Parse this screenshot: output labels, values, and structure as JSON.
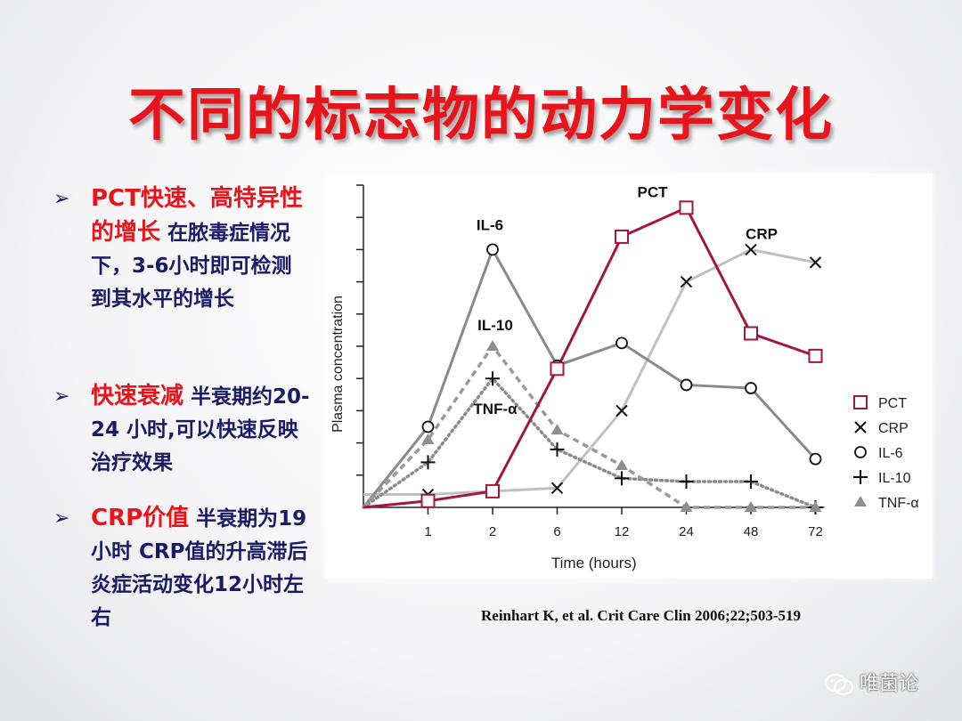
{
  "slide": {
    "title": "不同的标志物的动力学变化",
    "bullets": [
      {
        "highlight": "PCT快速、高特异性的增长",
        "text": " 在脓毒症情况下，3-6小时即可检测到其水平的增长"
      },
      {
        "highlight": "快速衰减",
        "text": " 半衰期约20-24 小时,可以快速反映治疗效果"
      },
      {
        "highlight": "CRP价值",
        "text": " 半衰期为19小时  CRP值的升高滞后炎症活动变化12小时左右"
      }
    ],
    "bullet_marker": "➢",
    "citation": "Reinhart K, et al. Crit Care Clin 2006;22;503-519",
    "watermark": "唯菌论",
    "watermark_icon": "wechat-icon",
    "title_color": "#e8141b",
    "text_color": "#1c1a66"
  },
  "chart_data": {
    "type": "line",
    "xlabel": "Time (hours)",
    "ylabel": "Plasma concentration",
    "x": [
      "0",
      "1",
      "2",
      "6",
      "12",
      "24",
      "48",
      "72"
    ],
    "x_ticklabels": [
      "1",
      "2",
      "6",
      "12",
      "24",
      "48",
      "72"
    ],
    "y_ticks_count": 10,
    "y_ticklabels": false,
    "ylim": [
      0,
      10
    ],
    "grid": false,
    "legend_position": "right",
    "series": [
      {
        "name": "PCT",
        "marker": "square",
        "line": "solid",
        "color": "#a3173d",
        "values": [
          0,
          0.2,
          0.5,
          4.3,
          8.4,
          9.3,
          5.4,
          4.7
        ]
      },
      {
        "name": "CRP",
        "marker": "x",
        "line": "solid",
        "color": "#c0c0c0",
        "values": [
          0.4,
          0.4,
          0.5,
          0.6,
          3.0,
          7.0,
          8.0,
          7.6
        ]
      },
      {
        "name": "IL-6",
        "marker": "circle",
        "line": "solid",
        "color": "#8a8a8a",
        "values": [
          0,
          2.5,
          8.0,
          4.4,
          5.1,
          3.8,
          3.7,
          1.5
        ]
      },
      {
        "name": "IL-10",
        "marker": "plus",
        "line": "dotted",
        "color": "#8a8a8a",
        "values": [
          0,
          1.4,
          4.0,
          1.8,
          0.9,
          0.8,
          0.8,
          0
        ]
      },
      {
        "name": "TNF-α",
        "marker": "triangle",
        "line": "dashed",
        "color": "#9a9a9a",
        "values": [
          0,
          2.1,
          5.0,
          2.4,
          1.3,
          0,
          0,
          0
        ]
      }
    ],
    "annotations": [
      {
        "text": "IL-6",
        "series": "IL-6",
        "x": "2"
      },
      {
        "text": "IL-10",
        "series": "TNF-α",
        "x": "2"
      },
      {
        "text": "TNF-α",
        "series": "IL-10",
        "x": "2"
      },
      {
        "text": "PCT",
        "series": "PCT",
        "x": "24"
      },
      {
        "text": "CRP",
        "series": "CRP",
        "x": "48"
      }
    ]
  }
}
